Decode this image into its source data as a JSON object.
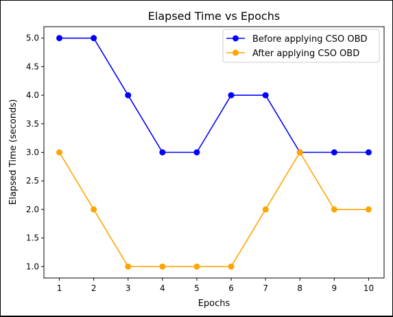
{
  "chart_data": {
    "type": "line",
    "title": "Elapsed Time vs Epochs",
    "xlabel": "Epochs",
    "ylabel": "Elapsed Time (seconds)",
    "x": [
      1,
      2,
      3,
      4,
      5,
      6,
      7,
      8,
      9,
      10
    ],
    "xlim": [
      0.55,
      10.45
    ],
    "ylim": [
      0.8,
      5.2
    ],
    "xticks": [
      1,
      2,
      3,
      4,
      5,
      6,
      7,
      8,
      9,
      10
    ],
    "yticks": [
      1.0,
      1.5,
      2.0,
      2.5,
      3.0,
      3.5,
      4.0,
      4.5,
      5.0
    ],
    "grid": false,
    "legend_position": "upper-right",
    "series": [
      {
        "name": "Before applying CSO OBD",
        "color": "#0000ff",
        "values": [
          5,
          5,
          4,
          3,
          3,
          4,
          4,
          3,
          3,
          3
        ]
      },
      {
        "name": "After applying CSO OBD",
        "color": "#ffa500",
        "values": [
          3,
          2,
          1,
          1,
          1,
          1,
          2,
          3,
          2,
          2
        ]
      }
    ]
  }
}
